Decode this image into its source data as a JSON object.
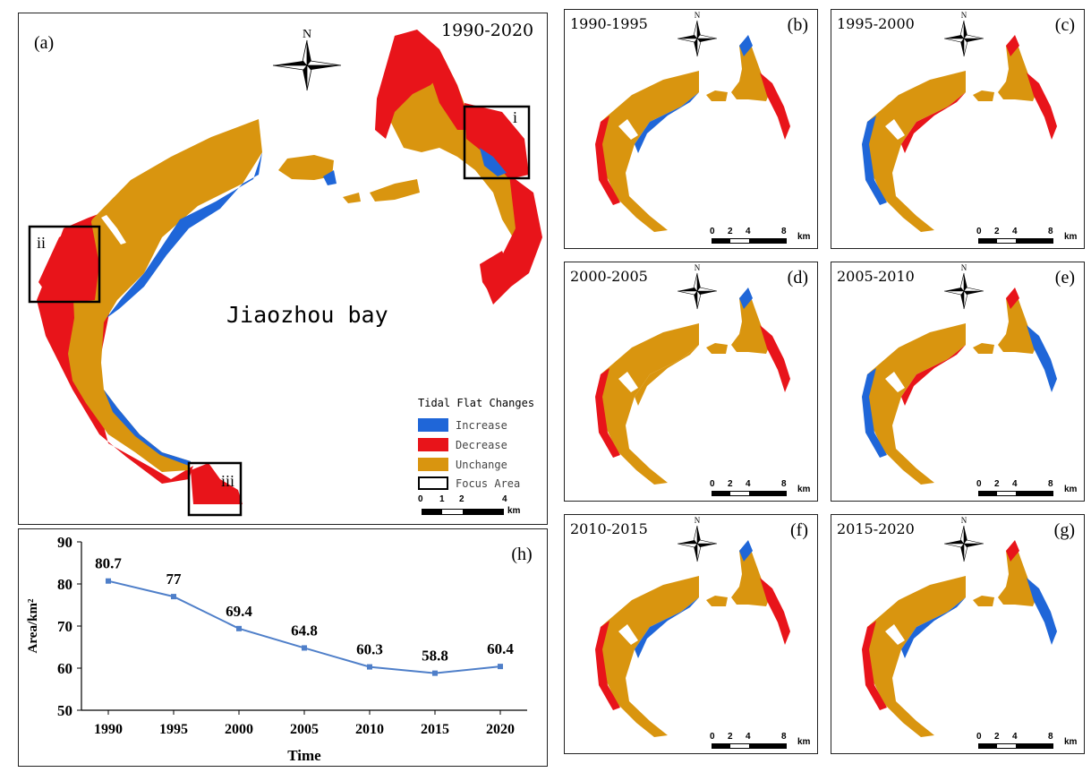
{
  "main_panel": {
    "label": "(a)",
    "period": "1990-2020",
    "bay_name": "Jiaozhou bay",
    "north": "N",
    "focus_labels": [
      "i",
      "ii",
      "iii"
    ],
    "legend": {
      "title": "Tidal Flat Changes",
      "items": [
        {
          "label": "Increase",
          "color": "#1f66d8"
        },
        {
          "label": "Decrease",
          "color": "#e8141a"
        },
        {
          "label": "Unchange",
          "color": "#d9950f"
        },
        {
          "label": "Focus Area",
          "color": "#ffffff"
        }
      ]
    },
    "scale": {
      "ticks": [
        "0",
        "1",
        "2",
        "4"
      ],
      "unit": "km"
    }
  },
  "small_panels": [
    {
      "label": "(b)",
      "period": "1990-1995",
      "north": "N"
    },
    {
      "label": "(c)",
      "period": "1995-2000",
      "north": "N"
    },
    {
      "label": "(d)",
      "period": "2000-2005",
      "north": "N"
    },
    {
      "label": "(e)",
      "period": "2005-2010",
      "north": "N"
    },
    {
      "label": "(f)",
      "period": "2010-2015",
      "north": "N"
    },
    {
      "label": "(g)",
      "period": "2015-2020",
      "north": "N"
    }
  ],
  "small_scale": {
    "ticks": [
      "0",
      "2",
      "4",
      "8"
    ],
    "unit": "km"
  },
  "colors": {
    "increase": "#1f66d8",
    "decrease": "#e8141a",
    "unchange": "#d9950f",
    "line": "#4f7fc9"
  },
  "chart_data": {
    "type": "line",
    "label": "(h)",
    "x": [
      1990,
      1995,
      2000,
      2005,
      2010,
      2015,
      2020
    ],
    "values": [
      80.7,
      77,
      69.4,
      64.8,
      60.3,
      58.8,
      60.4
    ],
    "data_labels": [
      "80.7",
      "77",
      "69.4",
      "64.8",
      "60.3",
      "58.8",
      "60.4"
    ],
    "xlabel": "Time",
    "ylabel": "Area/km²",
    "ylim": [
      50,
      90
    ],
    "yticks": [
      50,
      60,
      70,
      80,
      90
    ],
    "grid": false
  }
}
